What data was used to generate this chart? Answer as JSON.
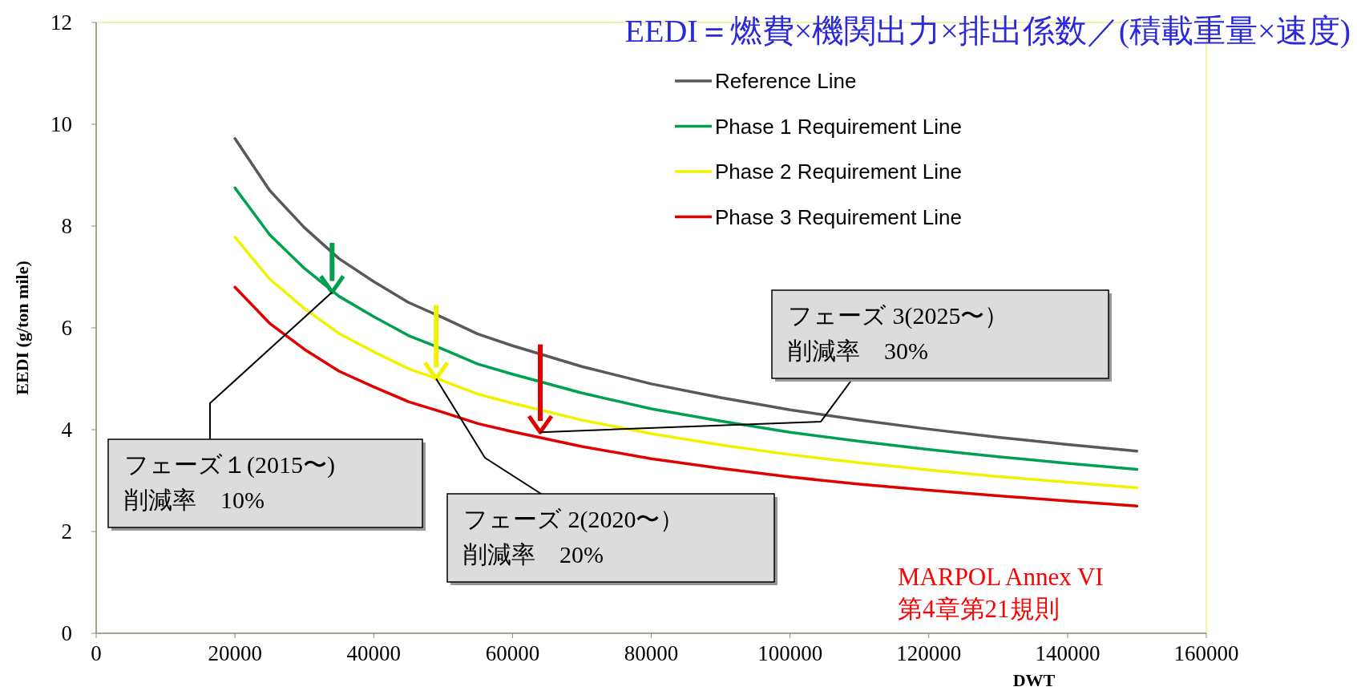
{
  "chart_data": {
    "type": "line",
    "title": "EEDI＝燃費×機関出力×排出係数／(積載重量×速度)",
    "xlabel": "DWT",
    "ylabel": "EEDI (g/ton mile)",
    "x": [
      20000,
      25000,
      30000,
      35000,
      40000,
      45000,
      50000,
      55000,
      60000,
      70000,
      80000,
      90000,
      100000,
      110000,
      120000,
      130000,
      140000,
      150000
    ],
    "series": [
      {
        "name": "Reference Line",
        "color": "#595959",
        "values": [
          9.72,
          8.7,
          7.97,
          7.36,
          6.91,
          6.5,
          6.2,
          5.88,
          5.65,
          5.24,
          4.9,
          4.63,
          4.39,
          4.19,
          4.01,
          3.85,
          3.71,
          3.58
        ]
      },
      {
        "name": "Phase 1 Requirement Line",
        "color": "#00a050",
        "values": [
          8.75,
          7.83,
          7.17,
          6.62,
          6.22,
          5.85,
          5.58,
          5.29,
          5.09,
          4.72,
          4.41,
          4.17,
          3.95,
          3.77,
          3.61,
          3.47,
          3.34,
          3.22
        ]
      },
      {
        "name": "Phase 2 Requirement Line",
        "color": "#f2f200",
        "values": [
          7.78,
          6.96,
          6.38,
          5.89,
          5.53,
          5.2,
          4.96,
          4.7,
          4.52,
          4.19,
          3.92,
          3.7,
          3.51,
          3.35,
          3.21,
          3.08,
          2.97,
          2.86
        ]
      },
      {
        "name": "Phase 3 Requirement Line",
        "color": "#e00000",
        "values": [
          6.8,
          6.09,
          5.58,
          5.15,
          4.84,
          4.55,
          4.34,
          4.12,
          3.96,
          3.67,
          3.43,
          3.24,
          3.07,
          2.93,
          2.81,
          2.7,
          2.6,
          2.5
        ]
      }
    ],
    "xlim": [
      0,
      160000
    ],
    "xticks": [
      0,
      20000,
      40000,
      60000,
      80000,
      100000,
      120000,
      140000,
      160000
    ],
    "ylim": [
      0,
      12
    ],
    "yticks": [
      0,
      2,
      4,
      6,
      8,
      10,
      12
    ],
    "grid": false,
    "legend": "top right",
    "marker": "none",
    "line_style": "solid",
    "annotations": [
      {
        "text": "フェーズ１(2015〜)",
        "x": 34000,
        "y": 6.7
      },
      "削減率　10%",
      {
        "text": "フェーズ 2(2020〜）",
        "x": 49000,
        "y": 5.0
      },
      "削減率　20%",
      {
        "text": "フェーズ 3(2025〜）",
        "x": 64000,
        "y": 3.95
      },
      "削減率　30%",
      "MARPOL Annex VI",
      "第4章第21規則"
    ]
  }
}
